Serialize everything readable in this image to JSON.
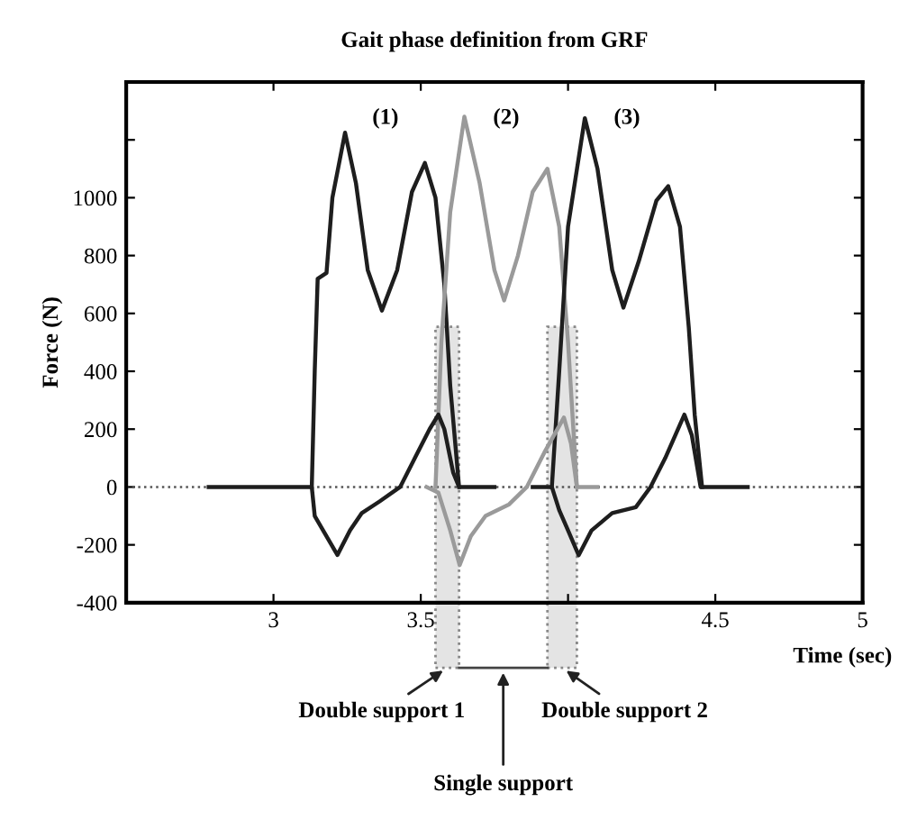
{
  "chart_data": {
    "type": "line",
    "title": "Gait phase definition from GRF",
    "xlabel": "Time (sec)",
    "ylabel": "Force (N)",
    "xlim": [
      2.5,
      5
    ],
    "xticks": [
      3,
      3.5,
      {
        "value": 4,
        "label": null
      },
      4.5,
      5
    ],
    "ylim": [
      -400,
      1400
    ],
    "yticks": [
      -400,
      -200,
      0,
      200,
      400,
      600,
      800,
      1000,
      {
        "value": 1200,
        "label": null
      }
    ],
    "grid": false,
    "marker": "none",
    "line_style": "solid",
    "series": [
      {
        "color": "#1e1e1e",
        "x": [
          3.13,
          3.14,
          3.15,
          3.18,
          3.2,
          3.243,
          3.28,
          3.32,
          3.368,
          3.42,
          3.47,
          3.514,
          3.55,
          3.58,
          3.6,
          3.63
        ],
        "values": [
          0,
          400,
          720,
          740,
          1000,
          1225,
          1050,
          750,
          610,
          750,
          1020,
          1120,
          1000,
          700,
          350,
          0
        ]
      },
      {
        "color": "#9a9a9a",
        "x": [
          3.55,
          3.57,
          3.6,
          3.648,
          3.7,
          3.75,
          3.783,
          3.83,
          3.88,
          3.93,
          3.97,
          4.0,
          4.03
        ],
        "values": [
          0,
          500,
          950,
          1280,
          1050,
          750,
          645,
          800,
          1020,
          1100,
          900,
          500,
          0
        ]
      },
      {
        "color": "#1e1e1e",
        "x": [
          3.945,
          3.97,
          4.0,
          4.057,
          4.1,
          4.15,
          4.188,
          4.24,
          4.3,
          4.34,
          4.38,
          4.41,
          4.43,
          4.455
        ],
        "values": [
          0,
          400,
          900,
          1275,
          1100,
          750,
          620,
          780,
          990,
          1040,
          900,
          550,
          250,
          0
        ]
      },
      {
        "color": "#1e1e1e",
        "x": [
          2.78,
          3.13,
          3.14,
          3.18,
          3.217,
          3.26,
          3.3,
          3.36,
          3.43,
          3.48,
          3.53,
          3.56,
          3.58,
          3.61,
          3.63,
          3.75
        ],
        "values": [
          0,
          0,
          -100,
          -170,
          -235,
          -150,
          -90,
          -50,
          0,
          100,
          200,
          250,
          200,
          50,
          0,
          0
        ]
      },
      {
        "color": "#9a9a9a",
        "x": [
          3.52,
          3.56,
          3.6,
          3.632,
          3.67,
          3.72,
          3.8,
          3.86,
          3.92,
          3.986,
          4.01,
          4.03,
          4.1
        ],
        "values": [
          0,
          -20,
          -150,
          -270,
          -170,
          -100,
          -60,
          0,
          120,
          240,
          150,
          0,
          0
        ]
      },
      {
        "color": "#1e1e1e",
        "x": [
          3.88,
          3.945,
          3.97,
          4.0,
          4.036,
          4.08,
          4.15,
          4.23,
          4.28,
          4.33,
          4.395,
          4.42,
          4.45,
          4.61
        ],
        "values": [
          0,
          0,
          -80,
          -150,
          -236,
          -150,
          -90,
          -70,
          0,
          100,
          250,
          180,
          0,
          0
        ]
      }
    ],
    "ref_lines": [
      {
        "axis": "y",
        "value": 0,
        "color": "#555555",
        "line_style": "dotted"
      }
    ],
    "bands": [
      {
        "axis": "x",
        "from": 3.55,
        "to": 3.63,
        "label": "Double support 1",
        "color": "#e4e4e4"
      },
      {
        "axis": "x",
        "from": 3.93,
        "to": 4.03,
        "label": "Double support 2",
        "color": "#e4e4e4"
      }
    ],
    "annotations": [
      "(1)",
      "(2)",
      "(3)",
      "Single support"
    ]
  }
}
